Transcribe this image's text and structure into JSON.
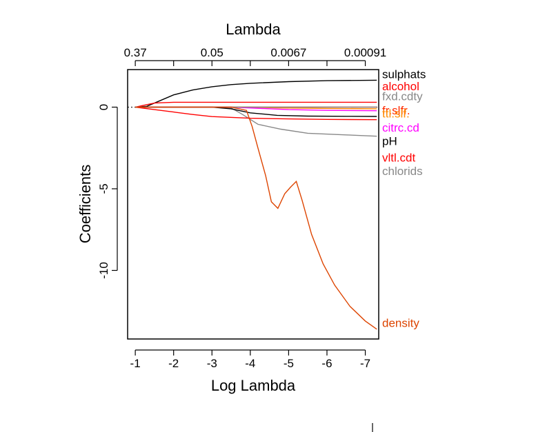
{
  "chart_data": {
    "type": "line",
    "top_axis_label": "Lambda",
    "xlabel": "Log Lambda",
    "ylabel": "Coefficients",
    "x_axis_reversed": true,
    "xlim": [
      -0.8,
      -7.35
    ],
    "ylim": [
      -14.2,
      2.3
    ],
    "x_ticks": [
      -1,
      -2,
      -3,
      -4,
      -5,
      -6,
      -7
    ],
    "x_tick_labels": [
      "-1",
      "-2",
      "-3",
      "-4",
      "-5",
      "-6",
      "-7"
    ],
    "y_ticks": [
      0,
      -5,
      -10
    ],
    "y_tick_labels": [
      "0",
      "-5",
      "-10"
    ],
    "top_ticks": [
      -1,
      -3,
      -5,
      -7
    ],
    "top_tick_labels": [
      "0.37",
      "0.05",
      "0.0067",
      "0.00091"
    ],
    "zero_line": true,
    "grid": false,
    "series": [
      {
        "name": "sulphats",
        "color": "#000000",
        "points": [
          [
            -1.0,
            0.0
          ],
          [
            -1.3,
            0.05
          ],
          [
            -1.6,
            0.35
          ],
          [
            -2.0,
            0.75
          ],
          [
            -2.5,
            1.05
          ],
          [
            -3.0,
            1.25
          ],
          [
            -3.5,
            1.38
          ],
          [
            -4.0,
            1.46
          ],
          [
            -5.0,
            1.56
          ],
          [
            -6.0,
            1.62
          ],
          [
            -7.3,
            1.65
          ]
        ]
      },
      {
        "name": "alcohol",
        "color": "#ff0000",
        "points": [
          [
            -1.0,
            0.0
          ],
          [
            -1.2,
            0.1
          ],
          [
            -1.5,
            0.25
          ],
          [
            -2.0,
            0.3
          ],
          [
            -3.0,
            0.3
          ],
          [
            -4.0,
            0.3
          ],
          [
            -5.0,
            0.3
          ],
          [
            -6.0,
            0.3
          ],
          [
            -7.3,
            0.3
          ]
        ]
      },
      {
        "name": "fxd.cdty",
        "color": "#888888",
        "points": [
          [
            -1.0,
            0.0
          ],
          [
            -2.5,
            0.0
          ],
          [
            -3.0,
            0.0
          ],
          [
            -3.5,
            -0.05
          ],
          [
            -3.8,
            -0.45
          ],
          [
            -4.2,
            -1.05
          ],
          [
            -4.8,
            -1.35
          ],
          [
            -5.5,
            -1.6
          ],
          [
            -6.5,
            -1.7
          ],
          [
            -7.3,
            -1.78
          ]
        ]
      },
      {
        "name": "fr.slfr.",
        "color": "#ff2a00",
        "points": [
          [
            -1.0,
            0.0
          ],
          [
            -7.3,
            0.0
          ]
        ]
      },
      {
        "name": "ttl.slf.",
        "color": "#ff8c00",
        "points": [
          [
            -1.0,
            0.0
          ],
          [
            -4.0,
            0.0
          ],
          [
            -4.8,
            -0.05
          ],
          [
            -6.0,
            -0.08
          ],
          [
            -7.3,
            -0.1
          ]
        ]
      },
      {
        "name": "citrc.cd",
        "color": "#ff00ff",
        "points": [
          [
            -1.0,
            0.0
          ],
          [
            -3.5,
            0.0
          ],
          [
            -4.3,
            -0.08
          ],
          [
            -5.0,
            -0.15
          ],
          [
            -6.0,
            -0.2
          ],
          [
            -7.3,
            -0.22
          ]
        ]
      },
      {
        "name": "pH",
        "color": "#000000",
        "points": [
          [
            -1.0,
            0.0
          ],
          [
            -2.0,
            0.0
          ],
          [
            -3.0,
            0.0
          ],
          [
            -3.5,
            -0.1
          ],
          [
            -4.0,
            -0.35
          ],
          [
            -4.7,
            -0.5
          ],
          [
            -5.5,
            -0.55
          ],
          [
            -6.5,
            -0.56
          ],
          [
            -7.3,
            -0.57
          ]
        ]
      },
      {
        "name": "vltl.cdt",
        "color": "#ff0000",
        "points": [
          [
            -1.0,
            0.0
          ],
          [
            -1.5,
            -0.15
          ],
          [
            -2.0,
            -0.3
          ],
          [
            -2.5,
            -0.45
          ],
          [
            -3.0,
            -0.58
          ],
          [
            -4.0,
            -0.68
          ],
          [
            -5.0,
            -0.72
          ],
          [
            -6.0,
            -0.75
          ],
          [
            -7.3,
            -0.77
          ]
        ]
      },
      {
        "name": "chlorids",
        "color": "#888888",
        "points": [
          [
            -1.0,
            0.0
          ],
          [
            -7.3,
            0.0
          ]
        ]
      },
      {
        "name": "density",
        "color": "#dd4400",
        "points": [
          [
            -1.0,
            0.0
          ],
          [
            -3.5,
            0.0
          ],
          [
            -3.9,
            -0.2
          ],
          [
            -4.05,
            -1.2
          ],
          [
            -4.2,
            -2.5
          ],
          [
            -4.4,
            -4.2
          ],
          [
            -4.55,
            -5.8
          ],
          [
            -4.72,
            -6.2
          ],
          [
            -4.9,
            -5.3
          ],
          [
            -5.05,
            -4.9
          ],
          [
            -5.2,
            -4.55
          ],
          [
            -5.35,
            -5.7
          ],
          [
            -5.6,
            -7.8
          ],
          [
            -5.9,
            -9.6
          ],
          [
            -6.2,
            -10.9
          ],
          [
            -6.6,
            -12.2
          ],
          [
            -7.0,
            -13.1
          ],
          [
            -7.3,
            -13.6
          ]
        ]
      }
    ],
    "right_labels": [
      {
        "text": "sulphats",
        "color": "#000000",
        "y": 2.03
      },
      {
        "text": "alcohol",
        "color": "#ff0000",
        "y": 1.29
      },
      {
        "text": "fxd.cdty",
        "color": "#888888",
        "y": 0.68
      },
      {
        "text": "fr.slfr.",
        "color": "#ff2a00",
        "y": -0.2
      },
      {
        "text": "ttl.slf.",
        "color": "#ff8c00",
        "y": -0.37
      },
      {
        "text": "citrc.cd",
        "color": "#ff00ff",
        "y": -1.24
      },
      {
        "text": "pH",
        "color": "#000000",
        "y": -2.07
      },
      {
        "text": "vltl.cdt",
        "color": "#ff0000",
        "y": -3.07
      },
      {
        "text": "chlorids",
        "color": "#888888",
        "y": -3.91
      },
      {
        "text": "density",
        "color": "#dd4400",
        "y": -13.2
      }
    ]
  }
}
